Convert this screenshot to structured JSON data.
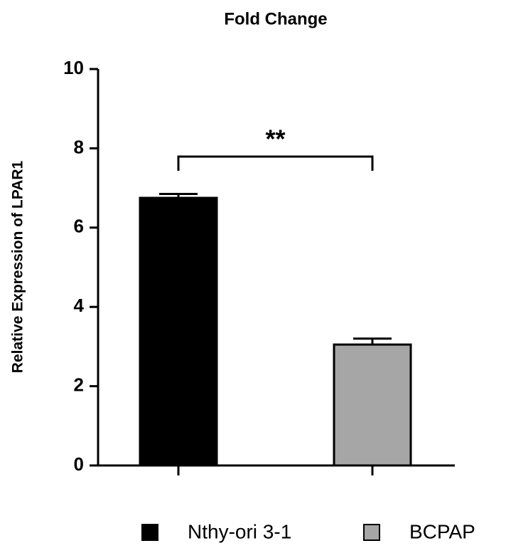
{
  "chart_data": {
    "type": "bar",
    "title": "Fold Change",
    "y_label": "Relative Expression of LPAR1",
    "categories": [
      "Nthy-ori 3-1",
      "BCPAP"
    ],
    "values": [
      6.75,
      3.05
    ],
    "errors": [
      0.1,
      0.15
    ],
    "colors": [
      "#000000",
      "#a6a6a6"
    ],
    "ylim": [
      0,
      10
    ],
    "yticks": [
      0,
      2,
      4,
      6,
      8,
      10
    ],
    "annotation": "**",
    "legend": "bottom"
  }
}
